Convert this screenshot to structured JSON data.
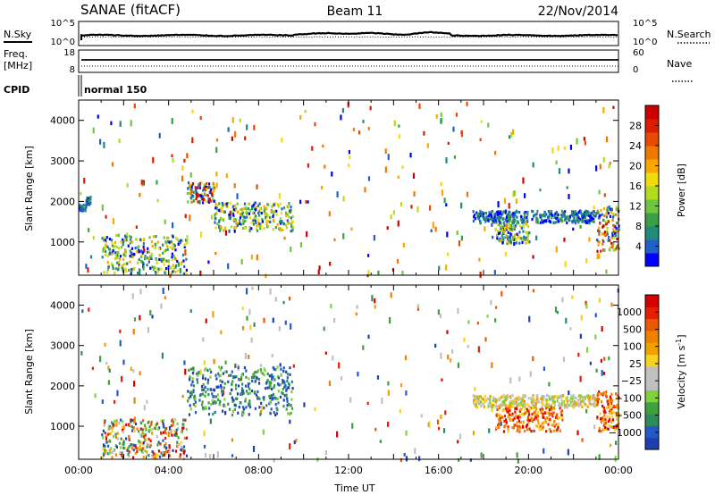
{
  "header": {
    "station": "SANAE (fitACF)",
    "beam": "Beam 11",
    "date": "22/Nov/2014"
  },
  "sky_panel": {
    "left_label": "N.Sky",
    "right_label": "N.Search",
    "right_line_style": "dotted",
    "left_ticks": [
      "10^5",
      "10^0"
    ],
    "right_ticks": [
      "10^5",
      "10^0"
    ]
  },
  "freq_panel": {
    "left_label_1": "Freq.",
    "left_label_2": "[MHz]",
    "right_label": "Nave",
    "right_line_style": "dotted",
    "left_ticks": [
      "18",
      "8"
    ],
    "right_ticks": [
      "60",
      "0"
    ]
  },
  "cpid": {
    "label": "CPID",
    "mode": "normal 150"
  },
  "chart_data": [
    {
      "type": "heatmap",
      "name": "power",
      "ylabel": "Slant Range [km]",
      "ylim": [
        180,
        4500
      ],
      "y_ticks": [
        1000,
        2000,
        3000,
        4000
      ],
      "xlim_hours": [
        0,
        24
      ],
      "colorbar": {
        "label": "Power [dB]",
        "range": [
          0,
          32
        ],
        "ticks": [
          "4",
          "8",
          "12",
          "16",
          "20",
          "24",
          "28"
        ],
        "colors": [
          "#0000ff",
          "#2060c8",
          "#1e8c78",
          "#3aa046",
          "#6cc83c",
          "#b4dc1e",
          "#f0dc0a",
          "#f8a800",
          "#f07800",
          "#e84a00",
          "#dc1e00",
          "#cc0000"
        ]
      },
      "echo_regions": [
        {
          "t_start": 0.0,
          "t_end": 0.3,
          "r_start": 1800,
          "r_end": 1950,
          "level": "low"
        },
        {
          "t_start": 0.3,
          "t_end": 0.5,
          "r_start": 1950,
          "r_end": 2150,
          "level": "low"
        },
        {
          "t_start": 1.0,
          "t_end": 4.8,
          "r_start": 250,
          "r_end": 1200,
          "level": "medium"
        },
        {
          "t_start": 4.8,
          "t_end": 6.0,
          "r_start": 2000,
          "r_end": 2500,
          "level": "high"
        },
        {
          "t_start": 6.0,
          "t_end": 9.5,
          "r_start": 1300,
          "r_end": 2000,
          "level": "medium"
        },
        {
          "t_start": 17.5,
          "t_end": 23.0,
          "r_start": 1500,
          "r_end": 1800,
          "level": "low"
        },
        {
          "t_start": 18.5,
          "t_end": 20.0,
          "r_start": 1000,
          "r_end": 1500,
          "level": "medium"
        },
        {
          "t_start": 23.0,
          "t_end": 24.0,
          "r_start": 800,
          "r_end": 1900,
          "level": "high"
        }
      ]
    },
    {
      "type": "heatmap",
      "name": "velocity",
      "ylabel": "Slant Range [km]",
      "ylim": [
        180,
        4500
      ],
      "y_ticks": [
        1000,
        2000,
        3000,
        4000
      ],
      "xlim_hours": [
        0,
        24
      ],
      "xlabel": "Time UT",
      "x_tick_labels": [
        "00:00",
        "04:00",
        "08:00",
        "12:00",
        "16:00",
        "20:00",
        "00:00"
      ],
      "colorbar": {
        "label_main": "Velocity [m s",
        "label_exp": "-1",
        "label_end": "]",
        "ticks": [
          "1000",
          "500",
          "100",
          "25",
          "−25",
          "−100",
          "−500",
          "−1000"
        ],
        "colors": [
          "#1f3fb0",
          "#2558c8",
          "#2d8c5a",
          "#3da23c",
          "#7fd23c",
          "#c0c0c0",
          "#c0c0c0",
          "#f8d21e",
          "#f0a000",
          "#ee8200",
          "#e85a00",
          "#e81e00",
          "#d60000"
        ]
      },
      "echo_regions": [
        {
          "t_start": 1.0,
          "t_end": 4.8,
          "r_start": 250,
          "r_end": 1200,
          "velocity": "mixed"
        },
        {
          "t_start": 4.8,
          "t_end": 9.5,
          "r_start": 1300,
          "r_end": 2500,
          "velocity": "positive"
        },
        {
          "t_start": 17.5,
          "t_end": 23.0,
          "r_start": 1500,
          "r_end": 1800,
          "velocity": "near-zero"
        },
        {
          "t_start": 18.5,
          "t_end": 21.5,
          "r_start": 900,
          "r_end": 1500,
          "velocity": "negative"
        },
        {
          "t_start": 23.0,
          "t_end": 24.0,
          "r_start": 900,
          "r_end": 1900,
          "velocity": "negative"
        }
      ]
    }
  ]
}
